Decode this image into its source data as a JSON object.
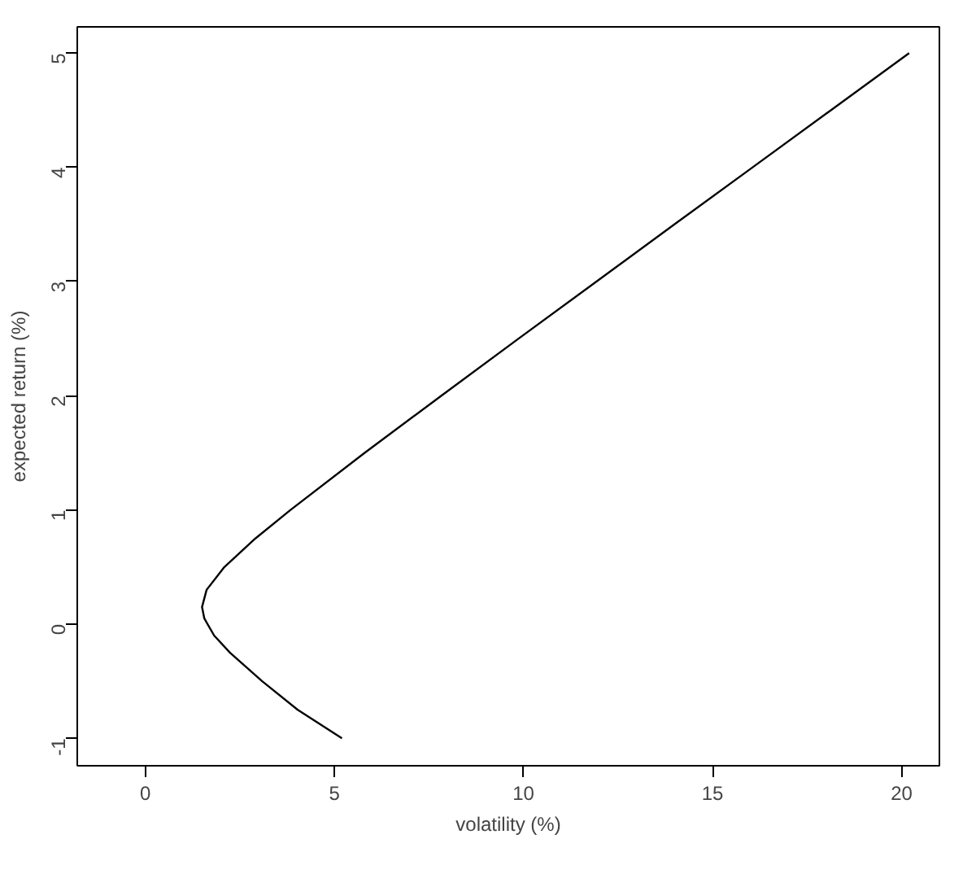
{
  "chart_data": {
    "type": "line",
    "xlabel": "volatility (%)",
    "ylabel": "expected return (%)",
    "xlim": [
      -1.8,
      21.0
    ],
    "ylim": [
      -1.24,
      5.23
    ],
    "xticks": [
      0,
      5,
      10,
      15,
      20
    ],
    "yticks": [
      {
        "value": -1,
        "label": "-1"
      },
      0,
      1,
      2,
      3,
      4,
      5
    ],
    "grid": false,
    "marker": "none",
    "line_style": "solid",
    "series": [
      {
        "color": "#000000",
        "x": [
          5.2,
          4.03,
          3.09,
          2.24,
          1.82,
          1.56,
          1.5,
          1.62,
          2.09,
          2.91,
          3.84,
          5.8,
          7.83,
          9.87,
          11.93,
          13.99,
          16.06,
          18.13,
          20.2
        ],
        "values": [
          -1,
          -0.75,
          -0.5,
          -0.25,
          -0.1,
          0.05,
          0.15,
          0.3,
          0.5,
          0.75,
          1,
          1.5,
          2,
          2.5,
          3,
          3.5,
          4,
          4.5,
          5
        ]
      }
    ]
  }
}
